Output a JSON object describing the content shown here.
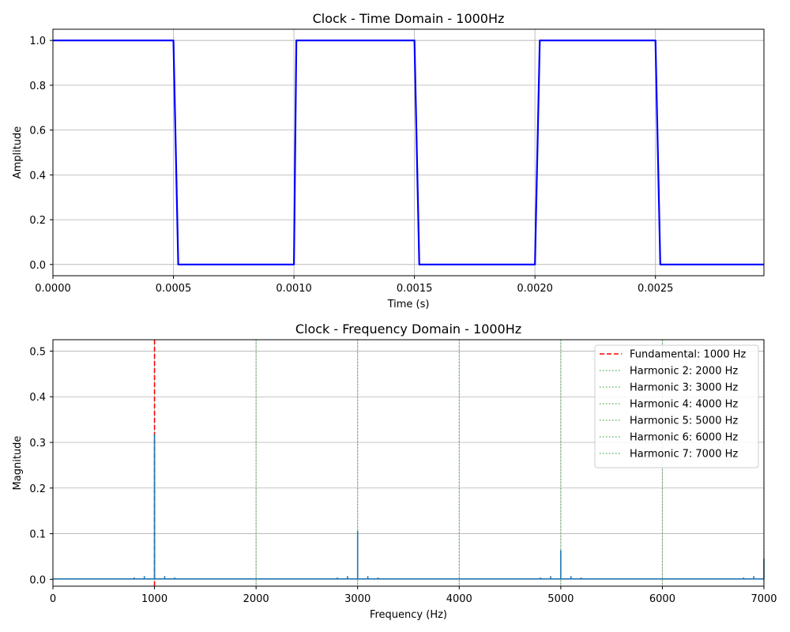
{
  "chart_data": [
    {
      "type": "line",
      "title": "Clock - Time Domain - 1000Hz",
      "xlabel": "Time (s)",
      "ylabel": "Amplitude",
      "xlim": [
        0,
        0.00295
      ],
      "ylim": [
        -0.05,
        1.05
      ],
      "xticks": [
        0,
        0.0005,
        0.001,
        0.0015,
        0.002,
        0.0025
      ],
      "xtick_labels": [
        "0.0000",
        "0.0005",
        "0.0010",
        "0.0015",
        "0.0020",
        "0.0025"
      ],
      "yticks": [
        0,
        0.2,
        0.4,
        0.6,
        0.8,
        1.0
      ],
      "ytick_labels": [
        "0.0",
        "0.2",
        "0.4",
        "0.6",
        "0.8",
        "1.0"
      ],
      "grid": true,
      "series": [
        {
          "color": "#0000ff",
          "x": [
            0,
            0.0005,
            0.00052,
            0.001,
            0.00101,
            0.0015,
            0.00152,
            0.002,
            0.00202,
            0.0025,
            0.00252,
            0.00295
          ],
          "y": [
            1,
            1,
            0,
            0,
            1,
            1,
            0,
            0,
            1,
            1,
            0,
            0
          ]
        }
      ]
    },
    {
      "type": "line",
      "title": "Clock - Frequency Domain - 1000Hz",
      "xlabel": "Frequency (Hz)",
      "ylabel": "Magnitude",
      "xlim": [
        0,
        7000
      ],
      "ylim": [
        -0.015,
        0.525
      ],
      "xticks": [
        0,
        1000,
        2000,
        3000,
        4000,
        5000,
        6000,
        7000
      ],
      "xtick_labels": [
        "0",
        "1000",
        "2000",
        "3000",
        "4000",
        "5000",
        "6000",
        "7000"
      ],
      "yticks": [
        0,
        0.1,
        0.2,
        0.3,
        0.4,
        0.5
      ],
      "ytick_labels": [
        "0.0",
        "0.1",
        "0.2",
        "0.3",
        "0.4",
        "0.5"
      ],
      "grid": true,
      "legend_position": "top-right",
      "spectrum": {
        "color": "#1f77b4",
        "peaks": [
          {
            "x": 800,
            "y": 0.004
          },
          {
            "x": 900,
            "y": 0.007
          },
          {
            "x": 1000,
            "y": 0.318
          },
          {
            "x": 1100,
            "y": 0.007
          },
          {
            "x": 1200,
            "y": 0.004
          },
          {
            "x": 1300,
            "y": 0.002
          },
          {
            "x": 2800,
            "y": 0.004
          },
          {
            "x": 2900,
            "y": 0.007
          },
          {
            "x": 3000,
            "y": 0.106
          },
          {
            "x": 3100,
            "y": 0.007
          },
          {
            "x": 3200,
            "y": 0.004
          },
          {
            "x": 4800,
            "y": 0.004
          },
          {
            "x": 4900,
            "y": 0.007
          },
          {
            "x": 5000,
            "y": 0.064
          },
          {
            "x": 5100,
            "y": 0.007
          },
          {
            "x": 5200,
            "y": 0.004
          },
          {
            "x": 6800,
            "y": 0.004
          },
          {
            "x": 6900,
            "y": 0.007
          },
          {
            "x": 7000,
            "y": 0.045
          }
        ],
        "baseline": 0.001
      },
      "markers": [
        {
          "label": "Fundamental: 1000 Hz",
          "x": 1000,
          "color": "#ff0000",
          "style": "dashed"
        },
        {
          "label": "Harmonic 2: 2000 Hz",
          "x": 2000,
          "color": "#4caf50",
          "style": "dotted"
        },
        {
          "label": "Harmonic 3: 3000 Hz",
          "x": 3000,
          "color": "#4caf50",
          "style": "dotted"
        },
        {
          "label": "Harmonic 4: 4000 Hz",
          "x": 4000,
          "color": "#4caf50",
          "style": "dotted"
        },
        {
          "label": "Harmonic 5: 5000 Hz",
          "x": 5000,
          "color": "#4caf50",
          "style": "dotted"
        },
        {
          "label": "Harmonic 6: 6000 Hz",
          "x": 6000,
          "color": "#4caf50",
          "style": "dotted"
        },
        {
          "label": "Harmonic 7: 7000 Hz",
          "x": 7000,
          "color": "#4caf50",
          "style": "dotted"
        }
      ]
    }
  ]
}
